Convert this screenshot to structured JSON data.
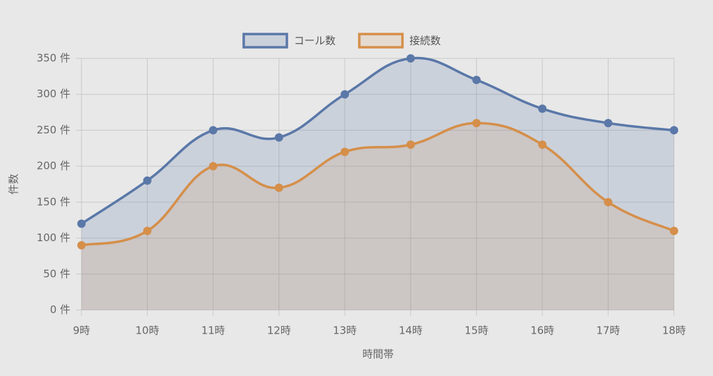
{
  "chart_data": {
    "type": "line",
    "categories": [
      "9時",
      "10時",
      "11時",
      "12時",
      "13時",
      "14時",
      "15時",
      "16時",
      "17時",
      "18時"
    ],
    "series": [
      {
        "name": "コール数",
        "color": "#5a78a8",
        "fill": "rgba(90,120,168,0.2)",
        "values": [
          120,
          180,
          250,
          240,
          300,
          350,
          320,
          280,
          260,
          250
        ]
      },
      {
        "name": "接続数",
        "color": "#d58f4a",
        "fill": "rgba(213,143,74,0.15)",
        "values": [
          90,
          110,
          200,
          170,
          220,
          230,
          260,
          230,
          150,
          110
        ]
      }
    ],
    "ylim": [
      0,
      350
    ],
    "yticks": [
      {
        "value": 0,
        "label": "0 件"
      },
      {
        "value": 50,
        "label": "50 件"
      },
      {
        "value": 100,
        "label": "100 件"
      },
      {
        "value": 150,
        "label": "150 件"
      },
      {
        "value": 200,
        "label": "200 件"
      },
      {
        "value": 250,
        "label": "250 件"
      },
      {
        "value": 300,
        "label": "300 件"
      },
      {
        "value": 350,
        "label": "350 件"
      }
    ],
    "ylabel": "件数",
    "xlabel": "時間帯",
    "grid": true,
    "legend": "top",
    "fill": true
  }
}
